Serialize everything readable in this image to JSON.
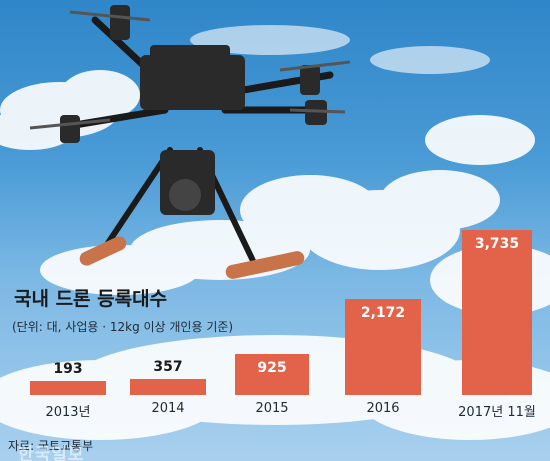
{
  "chart_data": {
    "type": "bar",
    "title": "국내 드론 등록대수",
    "subtitle": "(단위: 대, 사업용 · 12kg 이상 개인용 기준)",
    "categories": [
      "2013년",
      "2014",
      "2015",
      "2016",
      "2017년 11월"
    ],
    "values": [
      193,
      357,
      925,
      2172,
      3735
    ],
    "value_labels": [
      "193",
      "357",
      "925",
      "2,172",
      "3,735"
    ],
    "xlabel": "",
    "ylabel": "",
    "ylim": [
      0,
      3735
    ],
    "grid": false,
    "bar_color": "#e2624a",
    "source": "자료: 국토교통부",
    "watermark": "한국일보"
  }
}
